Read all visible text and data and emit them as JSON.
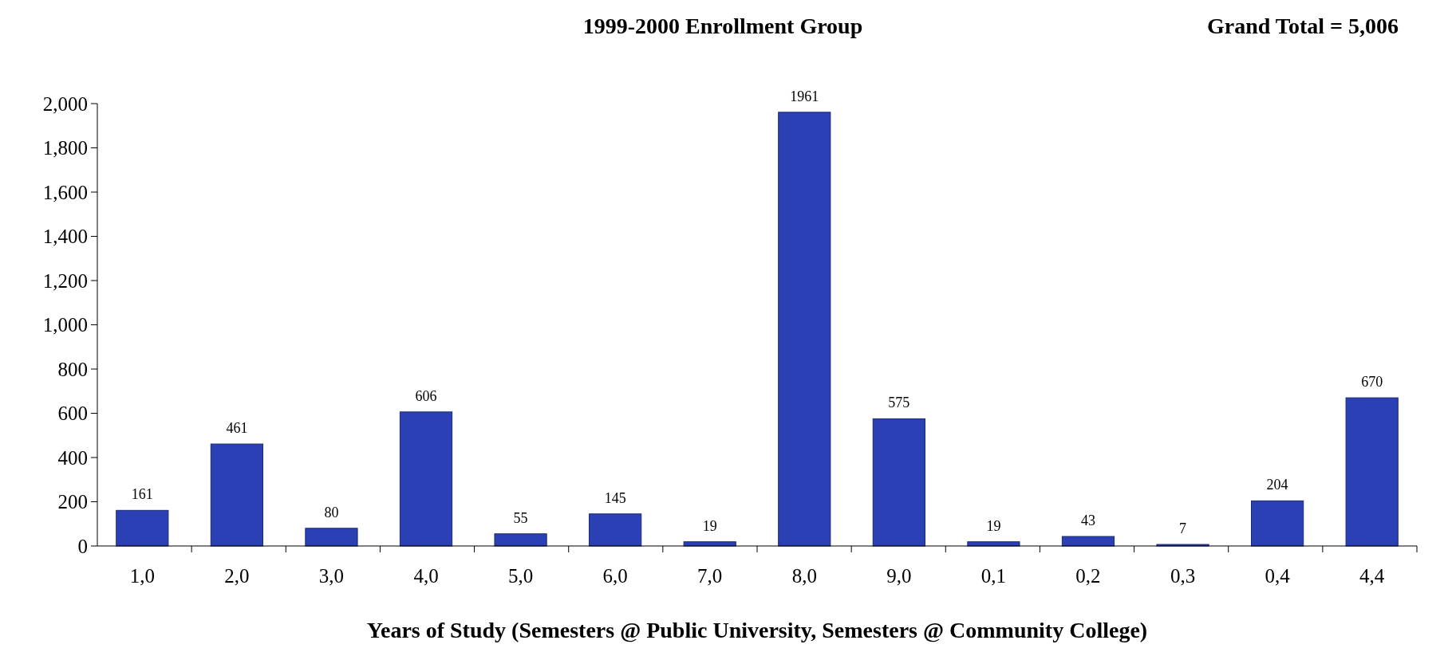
{
  "chart_data": {
    "type": "bar",
    "title": "1999-2000 Enrollment Group",
    "annotations": [
      "Grand Total = 5,006"
    ],
    "xlabel": "Years of Study (Semesters @ Public University, Semesters @ Community College)",
    "categories": [
      "1,0",
      "2,0",
      "3,0",
      "4,0",
      "5,0",
      "6,0",
      "7,0",
      "8,0",
      "9,0",
      "0,1",
      "0,2",
      "0,3",
      "0,4",
      "4,4"
    ],
    "values": [
      161,
      461,
      80,
      606,
      55,
      145,
      19,
      1961,
      575,
      19,
      43,
      7,
      204,
      670
    ],
    "color": "#2a40b4",
    "ylim": [
      0,
      2000
    ],
    "yticks": [
      0,
      200,
      400,
      600,
      800,
      {
        "value": 1000,
        "label": "1,000"
      },
      {
        "value": 1200,
        "label": "1,200"
      },
      {
        "value": 1400,
        "label": "1,400"
      },
      {
        "value": 1600,
        "label": "1,600"
      },
      {
        "value": 1800,
        "label": "1,800"
      },
      {
        "value": 2000,
        "label": "2,000"
      }
    ],
    "data_labels": true
  }
}
